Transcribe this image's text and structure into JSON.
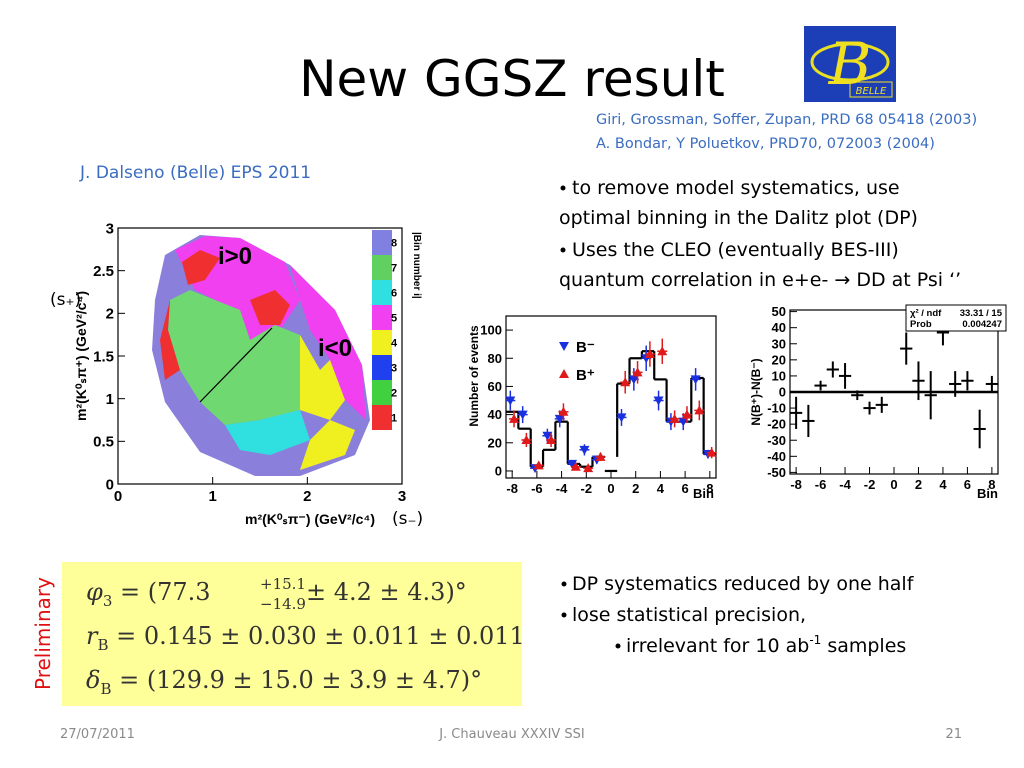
{
  "title": "New GGSZ result",
  "logo": {
    "letter": "B",
    "label": "BELLE"
  },
  "references": [
    "Giri, Grossman, Soffer, Zupan, PRD 68 05418 (2003)",
    "A. Bondar, Y Poluetkov, PRD70, 072003 (2004)"
  ],
  "credit": "J. Dalseno (Belle) EPS 2011",
  "bullets_top": [
    {
      "lines": [
        "to remove model systematics, use",
        "optimal binning in the Dalitz plot (DP)"
      ]
    },
    {
      "lines": [
        "Uses the CLEO (eventually BES-III)",
        "quantum correlation in e+e- → DD at Psi ‘’"
      ]
    }
  ],
  "chart_data": [
    {
      "type": "heatmap",
      "xlabel": "m²(K⁰ₛπ⁻) (GeV²/c⁴)",
      "ylabel": "m²(K⁰ₛπ⁺) (GeV²/c⁴)",
      "xlim": [
        0,
        3
      ],
      "ylim": [
        0,
        3
      ],
      "xticks": [
        0,
        1,
        2,
        3
      ],
      "yticks": [
        0,
        0.5,
        1,
        1.5,
        2,
        2.5,
        3
      ],
      "region_labels": [
        "i>0",
        "i<0"
      ],
      "colorbar": {
        "label": "|Bin number i|",
        "bins": [
          1,
          2,
          3,
          4,
          5,
          6,
          7,
          8
        ],
        "colors": [
          "#f03030",
          "#40d040",
          "#2040f0",
          "#f0f020",
          "#f040f0",
          "#30e0e0",
          "#60d060",
          "#8080e0"
        ]
      },
      "x_variable": "(s₋)",
      "y_variable": "(s₊)"
    },
    {
      "type": "histogram",
      "xlabel": "Bin",
      "ylabel": "Number of events",
      "x": [
        -8,
        -7,
        -6,
        -5,
        -4,
        -3,
        -2,
        -1,
        1,
        2,
        3,
        4,
        5,
        6,
        7,
        8
      ],
      "xlim": [
        -8.5,
        8.5
      ],
      "ylim": [
        -5,
        110
      ],
      "xticks": [
        -8,
        -6,
        -4,
        -2,
        0,
        2,
        4,
        6,
        8
      ],
      "yticks": [
        0,
        20,
        40,
        60,
        80,
        100
      ],
      "fit": {
        "color": "#000000",
        "values": [
          42,
          30,
          3,
          15,
          35,
          5,
          3,
          10,
          62,
          80,
          85,
          65,
          35,
          35,
          66,
          12
        ]
      },
      "series": [
        {
          "name": "B⁻",
          "color": "#1a2fe0",
          "marker": "triangle-down",
          "values": [
            50,
            40,
            2,
            25,
            37,
            5,
            15,
            8,
            38,
            65,
            80,
            50,
            35,
            35,
            65,
            12
          ],
          "errors": [
            7,
            6,
            2,
            5,
            6,
            2,
            4,
            3,
            6,
            8,
            9,
            7,
            6,
            6,
            8,
            3
          ]
        },
        {
          "name": "B⁺",
          "color": "#e01a1a",
          "marker": "triangle-up",
          "values": [
            37,
            22,
            4,
            22,
            42,
            3,
            2,
            10,
            63,
            70,
            83,
            85,
            37,
            40,
            43,
            13
          ],
          "errors": [
            6,
            5,
            2,
            5,
            6,
            2,
            2,
            3,
            8,
            8,
            9,
            9,
            6,
            6,
            7,
            4
          ]
        }
      ]
    },
    {
      "type": "scatter",
      "xlabel": "Bin",
      "ylabel": "N(B⁺)-N(B⁻)",
      "x": [
        -8,
        -7,
        -6,
        -5,
        -4,
        -3,
        -2,
        -1,
        1,
        2,
        3,
        4,
        5,
        6,
        7,
        8
      ],
      "xlim": [
        -8.5,
        8.5
      ],
      "ylim": [
        -51,
        51
      ],
      "xticks": [
        -8,
        -6,
        -4,
        -2,
        0,
        2,
        4,
        6,
        8
      ],
      "yticks": [
        -50,
        -40,
        -30,
        -20,
        -10,
        0,
        10,
        20,
        30,
        40,
        50
      ],
      "color": "#000000",
      "values": [
        -13,
        -18,
        4,
        14,
        10,
        -2,
        -10,
        -8,
        27,
        7,
        -2,
        37,
        5,
        7,
        -23,
        5
      ],
      "errors": [
        10,
        10,
        3,
        5,
        8,
        3,
        4,
        5,
        10,
        12,
        15,
        8,
        8,
        6,
        12,
        5
      ],
      "stats": [
        [
          "χ² / ndf",
          "33.31 / 15"
        ],
        [
          "Prob",
          "0.004247"
        ]
      ]
    }
  ],
  "preliminary": "Preliminary",
  "formulas": [
    {
      "symbol": "φ",
      "symbol_sub": "3",
      "text": " = (77.3",
      "sup": "+15.1",
      "sub": "−14.9",
      "tail": " ± 4.2 ± 4.3)°"
    },
    {
      "symbol": "r",
      "symbol_sub": "B",
      "text": " = 0.145 ± 0.030 ± 0.011 ± 0.011"
    },
    {
      "symbol": "δ",
      "symbol_sub": "B",
      "text": " = (129.9 ± 15.0 ± 3.9 ± 4.7)°"
    }
  ],
  "bullets_bottom": [
    {
      "text": "DP systematics reduced by one half"
    },
    {
      "text": "lose statistical precision,"
    },
    {
      "text": "irrelevant for 10 ab",
      "sup": "-1",
      "tail": " samples"
    }
  ],
  "footer": {
    "date": "27/07/2011",
    "center": "J. Chauveau XXXIV SSI",
    "page": "21"
  }
}
